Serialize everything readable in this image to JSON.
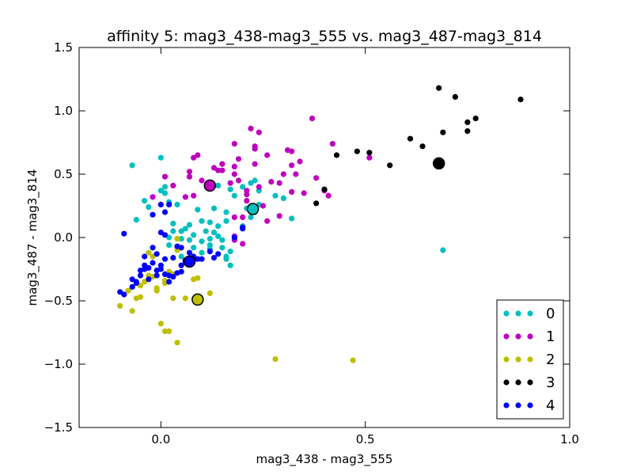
{
  "chart_data": {
    "type": "scatter",
    "title": "affinity 5: mag3_438-mag3_555 vs. mag3_487-mag3_814",
    "xlabel": "mag3_438 - mag3_555",
    "ylabel": "mag3_487 - mag3_814",
    "xlim": [
      -0.2,
      1.0
    ],
    "ylim": [
      -1.5,
      1.5
    ],
    "xticks": [
      0.0,
      0.5,
      1.0
    ],
    "xtick_labels": [
      "0.0",
      "0.5",
      "1.0"
    ],
    "yticks": [
      -1.5,
      -1.0,
      -0.5,
      0.0,
      0.5,
      1.0,
      1.5
    ],
    "ytick_labels": [
      "−1.5",
      "−1.0",
      "−0.5",
      "0.0",
      "0.5",
      "1.0",
      "1.5"
    ],
    "grid": false,
    "legend_position": "bottom-right",
    "series": [
      {
        "name": "0",
        "color": "#00bfbf",
        "points": [
          [
            -0.07,
            0.57
          ],
          [
            0.0,
            0.63
          ],
          [
            -0.06,
            0.14
          ],
          [
            -0.04,
            0.29
          ],
          [
            -0.03,
            0.24
          ],
          [
            0.0,
            0.37
          ],
          [
            0.01,
            0.35
          ],
          [
            0.01,
            0.4
          ],
          [
            0.02,
            0.28
          ],
          [
            0.04,
            0.26
          ],
          [
            0.06,
            0.07
          ],
          [
            0.03,
            0.11
          ],
          [
            0.07,
            0.1
          ],
          [
            0.09,
            0.22
          ],
          [
            0.1,
            0.13
          ],
          [
            0.12,
            0.12
          ],
          [
            0.11,
            0.05
          ],
          [
            0.08,
            0.02
          ],
          [
            0.05,
            0.05
          ],
          [
            0.1,
            -0.03
          ],
          [
            0.13,
            0.04
          ],
          [
            0.12,
            -0.01
          ],
          [
            0.14,
            0.09
          ],
          [
            0.14,
            0.01
          ],
          [
            0.16,
            0.13
          ],
          [
            0.16,
            0.2
          ],
          [
            0.17,
            0.38
          ],
          [
            0.18,
            0.33
          ],
          [
            0.2,
            0.4
          ],
          [
            0.2,
            0.09
          ],
          [
            0.17,
            -0.11
          ],
          [
            0.16,
            -0.15
          ],
          [
            0.16,
            -0.17
          ],
          [
            0.17,
            -0.22
          ],
          [
            0.15,
            -0.02
          ],
          [
            0.15,
            -0.08
          ],
          [
            0.12,
            -0.06
          ],
          [
            0.13,
            0.23
          ],
          [
            0.14,
            0.41
          ],
          [
            0.22,
            0.43
          ],
          [
            0.23,
            0.45
          ],
          [
            0.24,
            0.37
          ],
          [
            0.24,
            0.26
          ],
          [
            0.21,
            0.23
          ],
          [
            0.23,
            0.2
          ],
          [
            0.22,
            0.16
          ],
          [
            0.28,
            0.33
          ],
          [
            0.3,
            0.31
          ],
          [
            0.32,
            0.15
          ],
          [
            0.02,
            0.0
          ],
          [
            0.05,
            -0.01
          ],
          [
            0.07,
            -0.02
          ],
          [
            0.08,
            -0.08
          ],
          [
            0.12,
            -0.09
          ],
          [
            0.69,
            -0.1
          ],
          [
            0.05,
            -0.15
          ],
          [
            0.1,
            -0.12
          ],
          [
            0.03,
            0.05
          ],
          [
            0.02,
            -0.06
          ]
        ],
        "centroid": [
          0.225,
          0.225
        ]
      },
      {
        "name": "1",
        "color": "#bf00bf",
        "points": [
          [
            -0.02,
            0.32
          ],
          [
            0.01,
            0.48
          ],
          [
            0.03,
            0.41
          ],
          [
            0.06,
            0.32
          ],
          [
            0.07,
            0.52
          ],
          [
            0.07,
            0.48
          ],
          [
            0.08,
            0.63
          ],
          [
            0.09,
            0.65
          ],
          [
            0.1,
            0.45
          ],
          [
            0.08,
            0.33
          ],
          [
            0.13,
            0.55
          ],
          [
            0.14,
            0.53
          ],
          [
            0.15,
            0.53
          ],
          [
            0.15,
            0.58
          ],
          [
            0.17,
            0.43
          ],
          [
            0.18,
            0.56
          ],
          [
            0.18,
            0.5
          ],
          [
            0.19,
            0.62
          ],
          [
            0.18,
            0.74
          ],
          [
            0.19,
            0.45
          ],
          [
            0.21,
            0.37
          ],
          [
            0.21,
            0.34
          ],
          [
            0.21,
            0.29
          ],
          [
            0.23,
            0.58
          ],
          [
            0.23,
            0.72
          ],
          [
            0.23,
            0.7
          ],
          [
            0.24,
            0.4
          ],
          [
            0.24,
            0.83
          ],
          [
            0.22,
            0.86
          ],
          [
            0.26,
            0.65
          ],
          [
            0.27,
            0.44
          ],
          [
            0.25,
            0.25
          ],
          [
            0.26,
            0.13
          ],
          [
            0.29,
            0.17
          ],
          [
            0.29,
            0.43
          ],
          [
            0.31,
            0.69
          ],
          [
            0.32,
            0.68
          ],
          [
            0.3,
            0.5
          ],
          [
            0.32,
            0.57
          ],
          [
            0.33,
            0.5
          ],
          [
            0.34,
            0.6
          ],
          [
            0.32,
            0.36
          ],
          [
            0.35,
            0.35
          ],
          [
            0.37,
            0.94
          ],
          [
            0.38,
            0.47
          ],
          [
            0.4,
            0.37
          ],
          [
            0.41,
            0.33
          ],
          [
            0.42,
            0.74
          ],
          [
            0.51,
            0.63
          ],
          [
            0.18,
            0.16
          ],
          [
            0.2,
            0.16
          ],
          [
            0.18,
            -0.02
          ],
          [
            0.2,
            -0.05
          ],
          [
            0.18,
            0.01
          ]
        ],
        "centroid": [
          0.12,
          0.41
        ]
      },
      {
        "name": "2",
        "color": "#bfbf00",
        "points": [
          [
            -0.1,
            -0.54
          ],
          [
            -0.07,
            -0.58
          ],
          [
            -0.06,
            -0.48
          ],
          [
            -0.05,
            -0.47
          ],
          [
            -0.05,
            -0.38
          ],
          [
            -0.04,
            -0.35
          ],
          [
            -0.03,
            -0.3
          ],
          [
            -0.02,
            -0.31
          ],
          [
            -0.03,
            -0.12
          ],
          [
            -0.02,
            -0.15
          ],
          [
            -0.01,
            -0.4
          ],
          [
            -0.01,
            -0.42
          ],
          [
            0.0,
            -0.68
          ],
          [
            0.01,
            -0.74
          ],
          [
            0.02,
            -0.74
          ],
          [
            0.02,
            -0.27
          ],
          [
            0.03,
            -0.29
          ],
          [
            0.03,
            -0.48
          ],
          [
            0.04,
            -0.83
          ],
          [
            0.04,
            -0.1
          ],
          [
            0.06,
            -0.48
          ],
          [
            0.08,
            -0.33
          ],
          [
            0.09,
            -0.32
          ],
          [
            0.12,
            -0.44
          ],
          [
            0.28,
            -0.96
          ],
          [
            0.47,
            -0.97
          ],
          [
            0.04,
            -0.01
          ],
          [
            0.05,
            -0.22
          ],
          [
            -0.08,
            -0.42
          ],
          [
            -0.09,
            -0.45
          ],
          [
            0.01,
            -0.34
          ],
          [
            0.01,
            -0.36
          ]
        ],
        "centroid": [
          0.09,
          -0.49
        ]
      },
      {
        "name": "3",
        "color": "#000000",
        "points": [
          [
            0.38,
            0.27
          ],
          [
            0.4,
            0.38
          ],
          [
            0.43,
            0.65
          ],
          [
            0.48,
            0.68
          ],
          [
            0.51,
            0.67
          ],
          [
            0.56,
            0.57
          ],
          [
            0.61,
            0.78
          ],
          [
            0.64,
            0.72
          ],
          [
            0.68,
            1.18
          ],
          [
            0.69,
            0.83
          ],
          [
            0.72,
            1.11
          ],
          [
            0.75,
            0.91
          ],
          [
            0.75,
            0.84
          ],
          [
            0.77,
            0.94
          ],
          [
            0.88,
            1.09
          ]
        ],
        "centroid": [
          0.68,
          0.585
        ]
      },
      {
        "name": "4",
        "color": "#0000ff",
        "points": [
          [
            -0.09,
            0.03
          ],
          [
            -0.1,
            -0.43
          ],
          [
            -0.09,
            -0.45
          ],
          [
            -0.07,
            -0.33
          ],
          [
            -0.05,
            -0.26
          ],
          [
            -0.05,
            -0.3
          ],
          [
            -0.04,
            -0.15
          ],
          [
            -0.04,
            -0.22
          ],
          [
            -0.04,
            -0.25
          ],
          [
            -0.03,
            -0.24
          ],
          [
            -0.03,
            -0.33
          ],
          [
            -0.02,
            -0.08
          ],
          [
            -0.02,
            -0.2
          ],
          [
            -0.01,
            -0.13
          ],
          [
            -0.01,
            -0.3
          ],
          [
            -0.01,
            -0.26
          ],
          [
            0.0,
            -0.22
          ],
          [
            0.0,
            -0.25
          ],
          [
            0.01,
            -0.29
          ],
          [
            0.01,
            -0.17
          ],
          [
            0.02,
            -0.3
          ],
          [
            0.02,
            -0.35
          ],
          [
            0.03,
            -0.31
          ],
          [
            0.04,
            -0.28
          ],
          [
            0.05,
            -0.22
          ],
          [
            0.05,
            -0.27
          ],
          [
            0.06,
            -0.18
          ],
          [
            0.06,
            -0.19
          ],
          [
            0.07,
            -0.12
          ],
          [
            0.08,
            -0.15
          ],
          [
            0.09,
            -0.17
          ],
          [
            0.1,
            -0.17
          ],
          [
            0.12,
            -0.11
          ],
          [
            0.13,
            -0.16
          ],
          [
            0.14,
            -0.13
          ],
          [
            0.18,
            0.0
          ],
          [
            0.2,
            0.07
          ],
          [
            0.2,
            0.08
          ],
          [
            0.0,
            0.26
          ],
          [
            0.01,
            0.2
          ],
          [
            0.02,
            0.26
          ],
          [
            -0.02,
            0.18
          ],
          [
            0.0,
            0.04
          ],
          [
            0.01,
            0.02
          ],
          [
            0.04,
            -0.07
          ],
          [
            0.05,
            -0.08
          ],
          [
            0.03,
            -0.16
          ],
          [
            -0.06,
            -0.35
          ],
          [
            -0.07,
            -0.39
          ],
          [
            -0.06,
            -0.36
          ]
        ],
        "centroid": [
          0.07,
          -0.19
        ]
      }
    ]
  }
}
